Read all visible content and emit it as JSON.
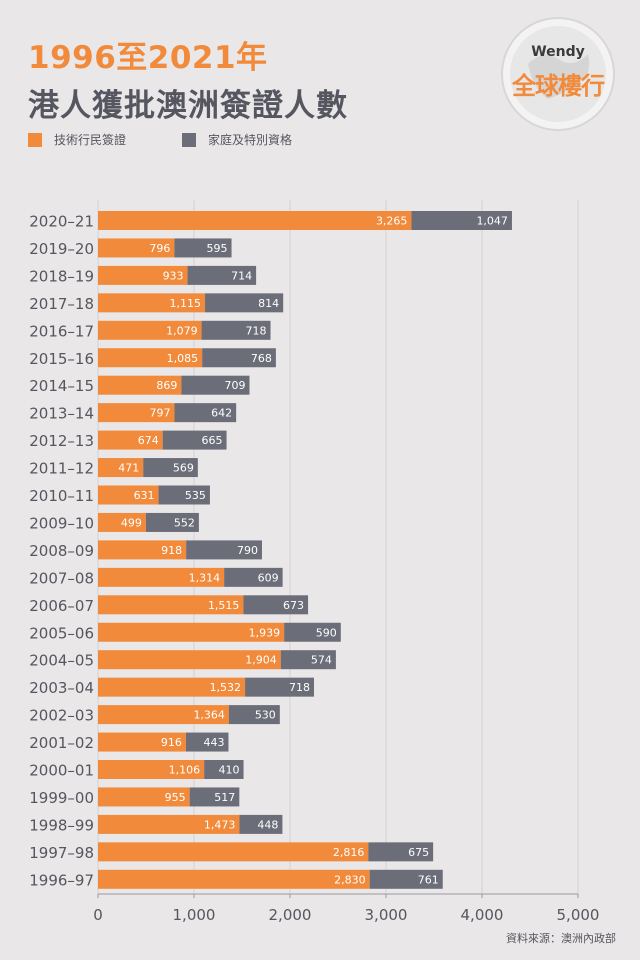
{
  "header": {
    "title_line1": "1996至2021年",
    "title_line2": "港人獲批澳洲簽證人數"
  },
  "logo": {
    "top": "Wendy",
    "main": "全球樓行"
  },
  "footer": {
    "source": "資料來源：澳洲內政部"
  },
  "colors": {
    "skilled": "#f18a3a",
    "family": "#6b6d79",
    "background": "#e9e7e7",
    "text": "#55565f"
  },
  "chart_data": {
    "type": "bar",
    "orientation": "horizontal",
    "stacked": true,
    "legend_position": "top-left",
    "grid": true,
    "xlim": [
      0,
      5000
    ],
    "x_ticks": [
      0,
      1000,
      2000,
      3000,
      4000,
      5000
    ],
    "x_tick_labels": [
      "0",
      "1,000",
      "2,000",
      "3,000",
      "4,000",
      "5,000"
    ],
    "categories": [
      "2020–21",
      "2019–20",
      "2018–19",
      "2017–18",
      "2016–17",
      "2015–16",
      "2014–15",
      "2013–14",
      "2012–13",
      "2011–12",
      "2010–11",
      "2009–10",
      "2008–09",
      "2007–08",
      "2006–07",
      "2005–06",
      "2004–05",
      "2003–04",
      "2002–03",
      "2001–02",
      "2000–01",
      "1999–00",
      "1998–99",
      "1997–98",
      "1996–97"
    ],
    "series": [
      {
        "name": "技術行民簽證",
        "color": "#f18a3a",
        "values": [
          3265,
          796,
          933,
          1115,
          1079,
          1085,
          869,
          797,
          674,
          471,
          631,
          499,
          918,
          1314,
          1515,
          1939,
          1904,
          1532,
          1364,
          916,
          1106,
          955,
          1473,
          2816,
          2830
        ],
        "labels": [
          "3,265",
          "796",
          "933",
          "1,115",
          "1,079",
          "1,085",
          "869",
          "797",
          "674",
          "471",
          "631",
          "499",
          "918",
          "1,314",
          "1,515",
          "1,939",
          "1,904",
          "1,532",
          "1,364",
          "916",
          "1,106",
          "955",
          "1,473",
          "2,816",
          "2,830"
        ]
      },
      {
        "name": "家庭及特別資格",
        "color": "#6b6d79",
        "values": [
          1047,
          595,
          714,
          814,
          718,
          768,
          709,
          642,
          665,
          569,
          535,
          552,
          790,
          609,
          673,
          590,
          574,
          718,
          530,
          443,
          410,
          517,
          448,
          675,
          761
        ],
        "labels": [
          "1,047",
          "595",
          "714",
          "814",
          "718",
          "768",
          "709",
          "642",
          "665",
          "569",
          "535",
          "552",
          "790",
          "609",
          "673",
          "590",
          "574",
          "718",
          "530",
          "443",
          "410",
          "517",
          "448",
          "675",
          "761"
        ]
      }
    ]
  }
}
